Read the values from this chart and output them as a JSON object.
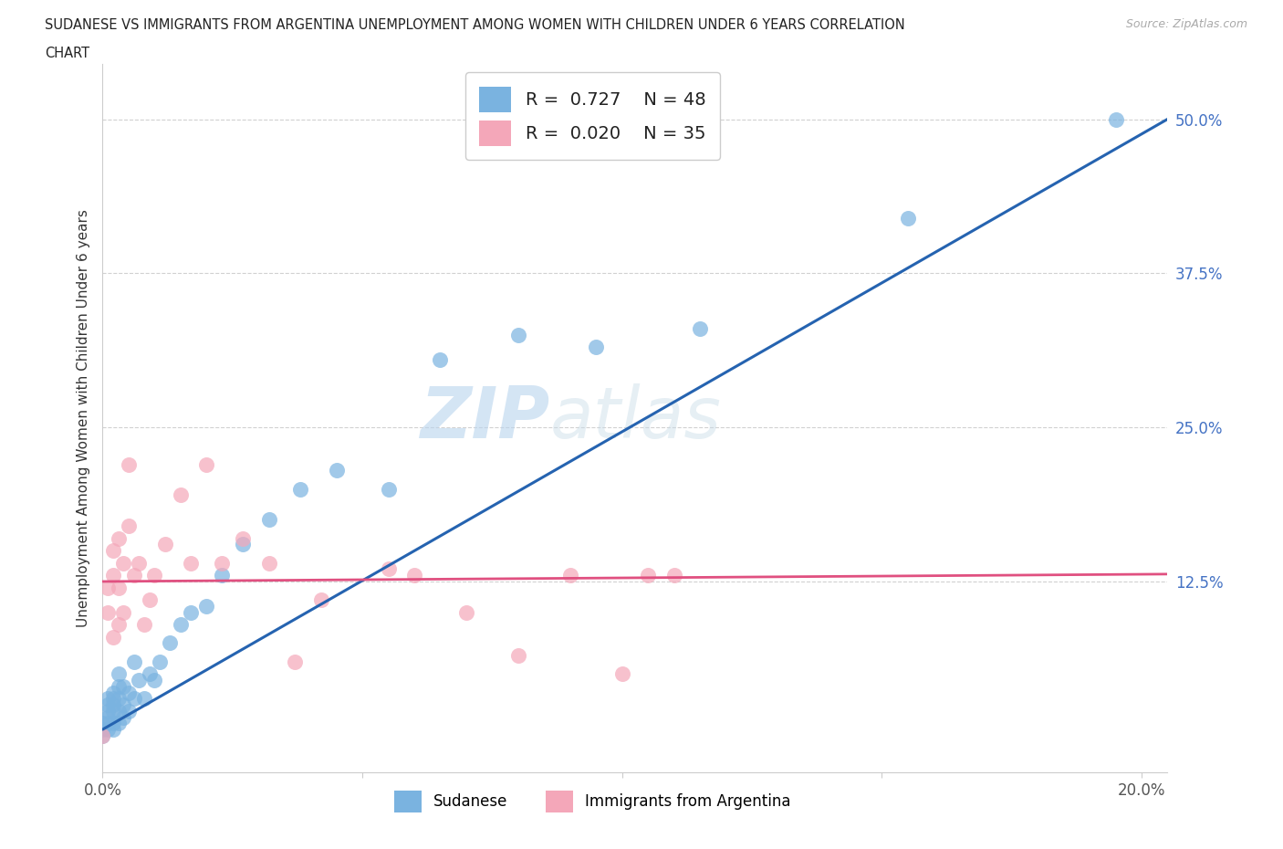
{
  "title_line1": "SUDANESE VS IMMIGRANTS FROM ARGENTINA UNEMPLOYMENT AMONG WOMEN WITH CHILDREN UNDER 6 YEARS CORRELATION",
  "title_line2": "CHART",
  "source_text": "Source: ZipAtlas.com",
  "ylabel": "Unemployment Among Women with Children Under 6 years",
  "xlim": [
    0.0,
    0.205
  ],
  "ylim": [
    -0.03,
    0.545
  ],
  "yticks": [
    0.0,
    0.125,
    0.25,
    0.375,
    0.5
  ],
  "ytick_labels": [
    "",
    "12.5%",
    "25.0%",
    "37.5%",
    "50.0%"
  ],
  "xticks": [
    0.0,
    0.05,
    0.1,
    0.15,
    0.2
  ],
  "xtick_labels": [
    "0.0%",
    "",
    "",
    "",
    "20.0%"
  ],
  "sudanese_color": "#7ab3e0",
  "argentina_color": "#f4a7b9",
  "sudanese_line_color": "#2563b0",
  "argentina_line_color": "#e05080",
  "sudanese_R": 0.727,
  "sudanese_N": 48,
  "argentina_R": 0.02,
  "argentina_N": 35,
  "background_color": "#ffffff",
  "sudanese_x": [
    0.0,
    0.0,
    0.0,
    0.001,
    0.001,
    0.001,
    0.001,
    0.001,
    0.001,
    0.002,
    0.002,
    0.002,
    0.002,
    0.002,
    0.002,
    0.003,
    0.003,
    0.003,
    0.003,
    0.003,
    0.004,
    0.004,
    0.004,
    0.005,
    0.005,
    0.006,
    0.006,
    0.007,
    0.008,
    0.009,
    0.01,
    0.011,
    0.013,
    0.015,
    0.017,
    0.02,
    0.023,
    0.027,
    0.032,
    0.038,
    0.045,
    0.055,
    0.065,
    0.08,
    0.095,
    0.115,
    0.155,
    0.195
  ],
  "sudanese_y": [
    0.0,
    0.005,
    0.01,
    0.005,
    0.01,
    0.015,
    0.02,
    0.025,
    0.03,
    0.005,
    0.01,
    0.02,
    0.025,
    0.03,
    0.035,
    0.01,
    0.02,
    0.03,
    0.04,
    0.05,
    0.015,
    0.025,
    0.04,
    0.02,
    0.035,
    0.03,
    0.06,
    0.045,
    0.03,
    0.05,
    0.045,
    0.06,
    0.075,
    0.09,
    0.1,
    0.105,
    0.13,
    0.155,
    0.175,
    0.2,
    0.215,
    0.2,
    0.305,
    0.325,
    0.315,
    0.33,
    0.42,
    0.5
  ],
  "argentina_x": [
    0.0,
    0.001,
    0.001,
    0.002,
    0.002,
    0.002,
    0.003,
    0.003,
    0.003,
    0.004,
    0.004,
    0.005,
    0.005,
    0.006,
    0.007,
    0.008,
    0.009,
    0.01,
    0.012,
    0.015,
    0.017,
    0.02,
    0.023,
    0.027,
    0.032,
    0.037,
    0.042,
    0.055,
    0.06,
    0.07,
    0.08,
    0.09,
    0.1,
    0.105,
    0.11
  ],
  "argentina_y": [
    0.0,
    0.1,
    0.12,
    0.08,
    0.13,
    0.15,
    0.09,
    0.12,
    0.16,
    0.1,
    0.14,
    0.22,
    0.17,
    0.13,
    0.14,
    0.09,
    0.11,
    0.13,
    0.155,
    0.195,
    0.14,
    0.22,
    0.14,
    0.16,
    0.14,
    0.06,
    0.11,
    0.135,
    0.13,
    0.1,
    0.065,
    0.13,
    0.05,
    0.13,
    0.13
  ],
  "sudanese_line_x0": 0.0,
  "sudanese_line_y0": 0.005,
  "sudanese_line_x1": 0.205,
  "sudanese_line_y1": 0.5,
  "argentina_line_x0": 0.0,
  "argentina_line_y0": 0.125,
  "argentina_line_x1": 0.205,
  "argentina_line_y1": 0.131
}
